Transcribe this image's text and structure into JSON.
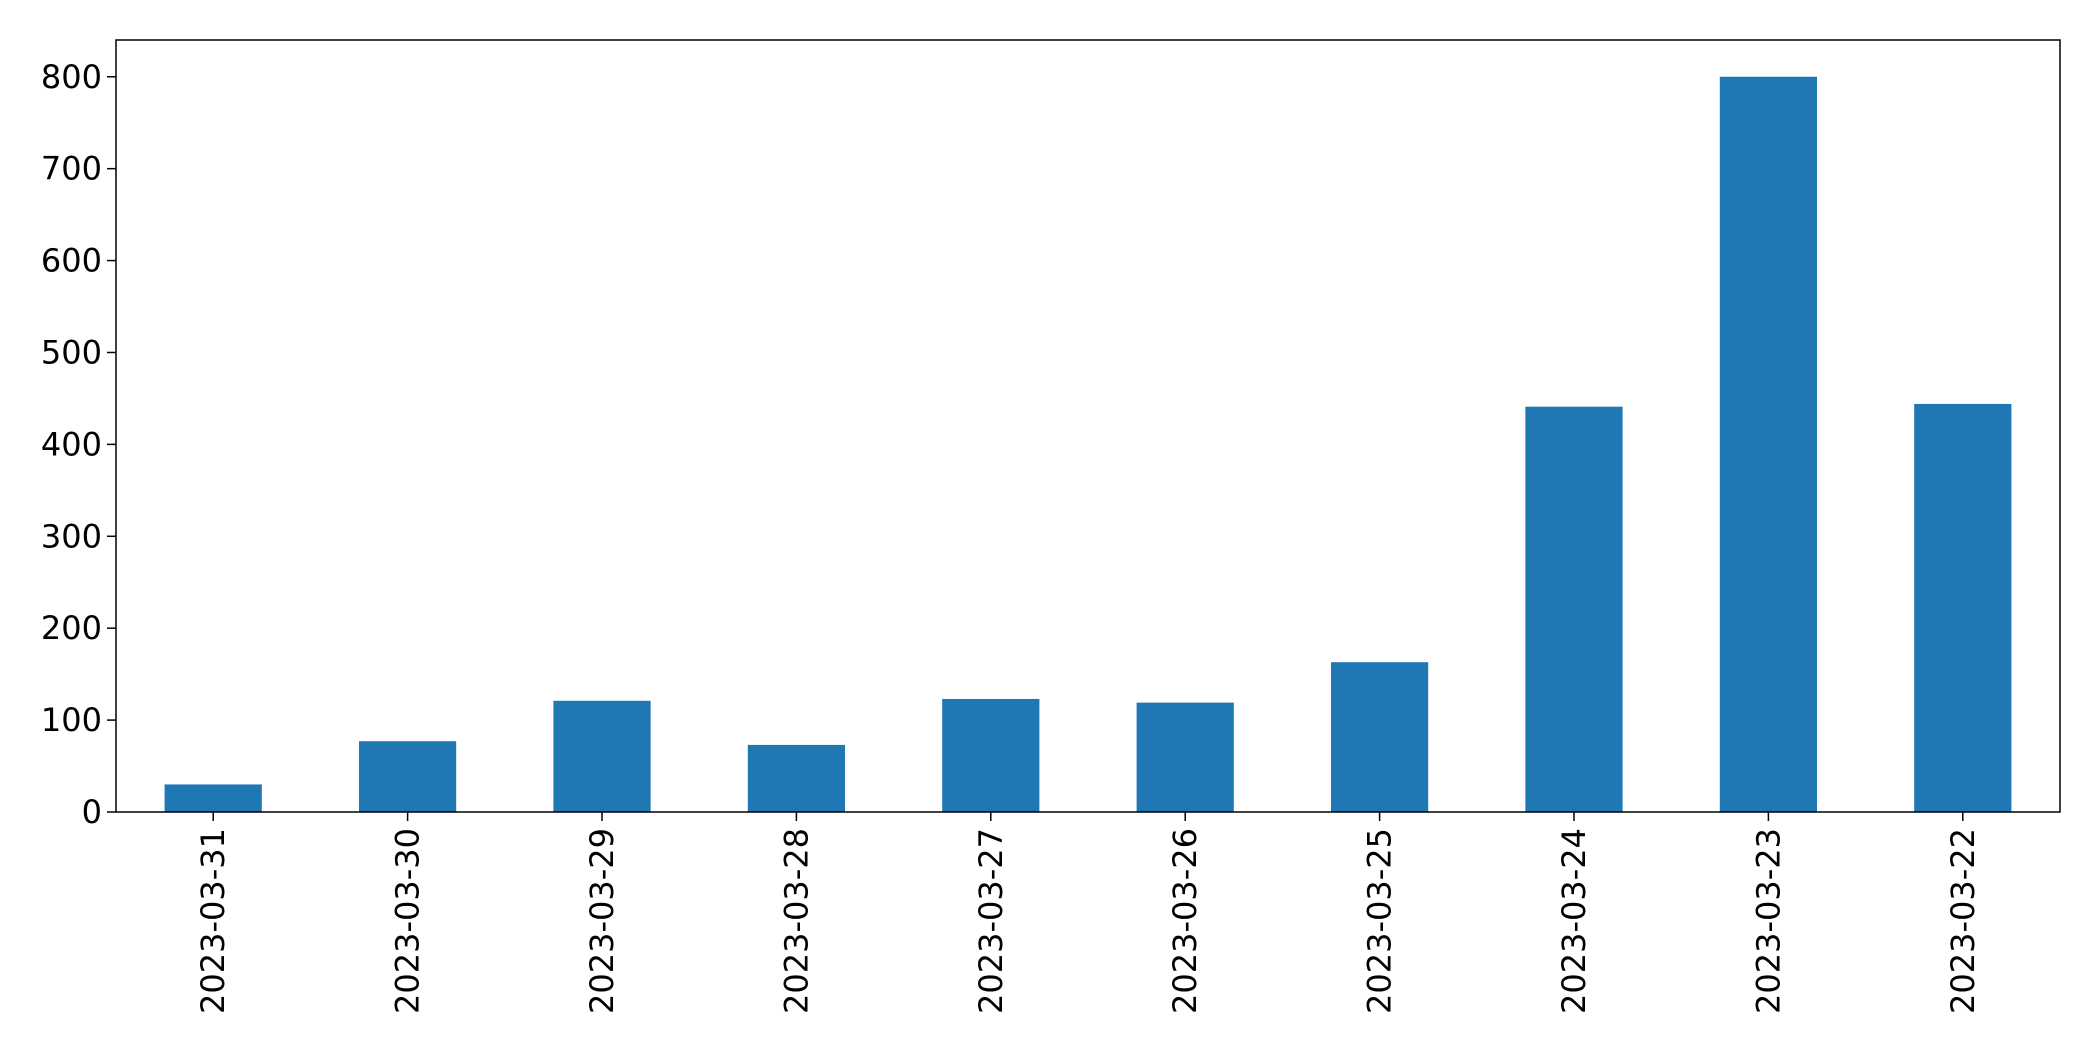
{
  "chart_data": {
    "type": "bar",
    "title": "",
    "xlabel": "",
    "ylabel": "",
    "categories": [
      "2023-03-31",
      "2023-03-30",
      "2023-03-29",
      "2023-03-28",
      "2023-03-27",
      "2023-03-26",
      "2023-03-25",
      "2023-03-24",
      "2023-03-23",
      "2023-03-22"
    ],
    "values": [
      30,
      77,
      121,
      73,
      123,
      119,
      163,
      441,
      800,
      444
    ],
    "ylim": [
      0,
      840
    ],
    "yticks": [
      0,
      100,
      200,
      300,
      400,
      500,
      600,
      700,
      800
    ],
    "grid": false,
    "legend": "none",
    "bar_color": "#1f77b4"
  }
}
